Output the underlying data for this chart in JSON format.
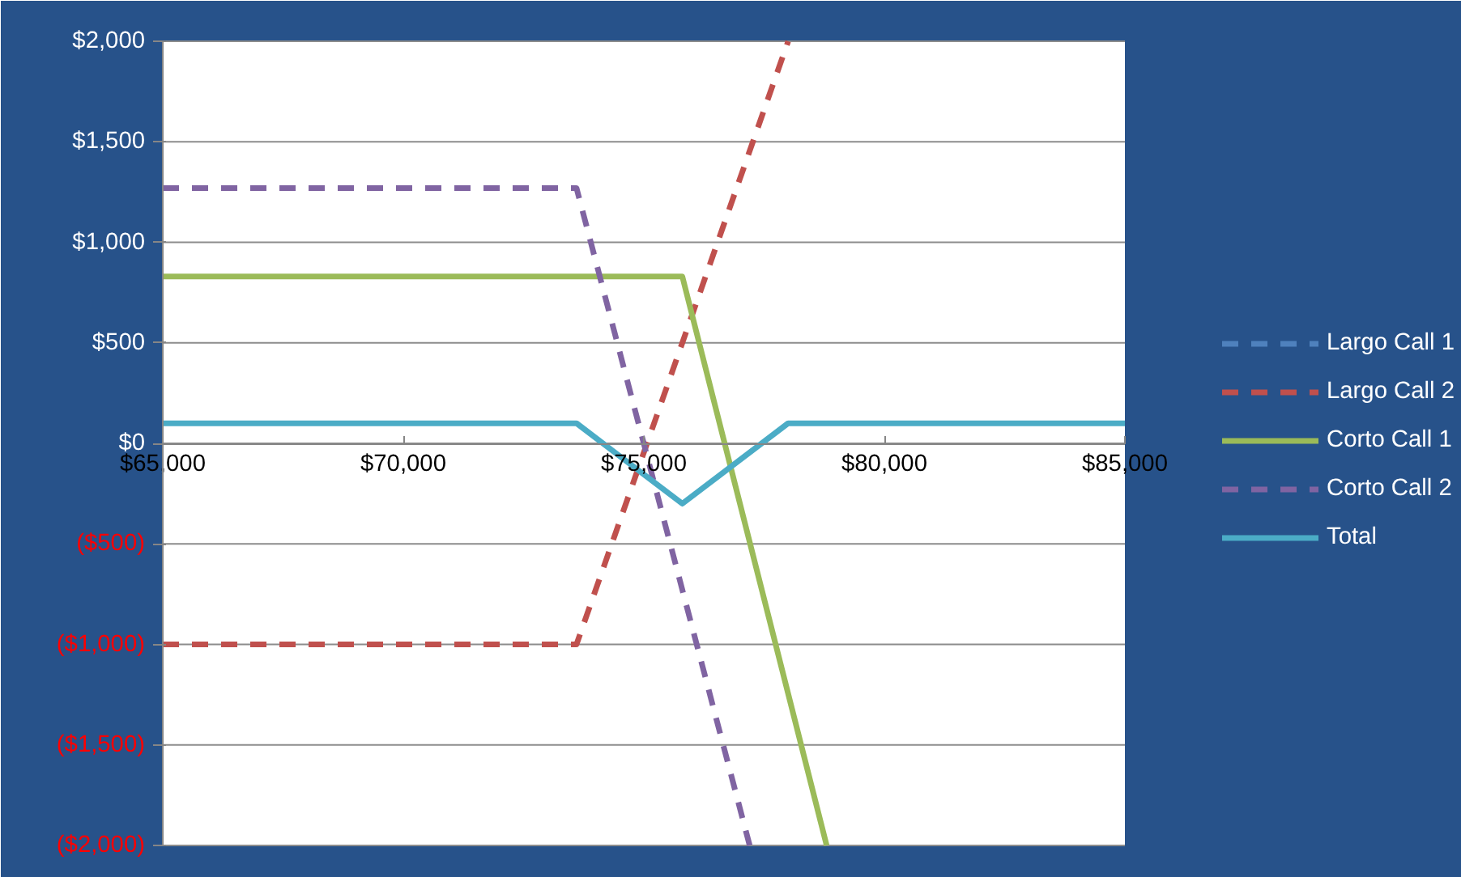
{
  "chart_data": {
    "type": "line",
    "xlim": [
      65000,
      85000
    ],
    "xticks": [
      {
        "value": 65000,
        "label": "$65,000"
      },
      {
        "value": 70000,
        "label": "$70,000"
      },
      {
        "value": 75000,
        "label": "$75,000"
      },
      {
        "value": 80000,
        "label": "$80,000"
      },
      {
        "value": 85000,
        "label": "$85,000"
      }
    ],
    "ylim": [
      -2000,
      2000
    ],
    "yticks": [
      {
        "value": -2000,
        "label": "($2,000)"
      },
      {
        "value": -1500,
        "label": "($1,500)"
      },
      {
        "value": -1000,
        "label": "($1,000)"
      },
      {
        "value": -500,
        "label": "($500)"
      },
      {
        "value": 0,
        "label": "$0"
      },
      {
        "value": 500,
        "label": "$500"
      },
      {
        "value": 1000,
        "label": "$1,000"
      },
      {
        "value": 1500,
        "label": "$1,500"
      },
      {
        "value": 2000,
        "label": "$2,000"
      }
    ],
    "grid": "y",
    "legend": "right",
    "series": [
      {
        "name": "Largo Call 1",
        "color": "#4f81bd",
        "line_style": "dashed"
      },
      {
        "name": "Largo Call 2",
        "color": "#c0504d",
        "line_style": "dashed",
        "x": [
          65000,
          73600,
          78000
        ],
        "values": [
          -1000,
          -1000,
          2000
        ]
      },
      {
        "name": "Corto Call 1",
        "color": "#9bbb59",
        "line_style": "solid",
        "x": [
          65000,
          75800,
          78800
        ],
        "values": [
          830,
          830,
          -2000
        ]
      },
      {
        "name": "Corto Call 2",
        "color": "#8064a2",
        "line_style": "dashed",
        "x": [
          65000,
          73600,
          77200
        ],
        "values": [
          1270,
          1270,
          -2000
        ]
      },
      {
        "name": "Total",
        "color": "#4bacc6",
        "line_style": "solid",
        "x": [
          65000,
          73600,
          75800,
          78000,
          85000
        ],
        "values": [
          100,
          100,
          -300,
          100,
          100
        ]
      }
    ]
  }
}
